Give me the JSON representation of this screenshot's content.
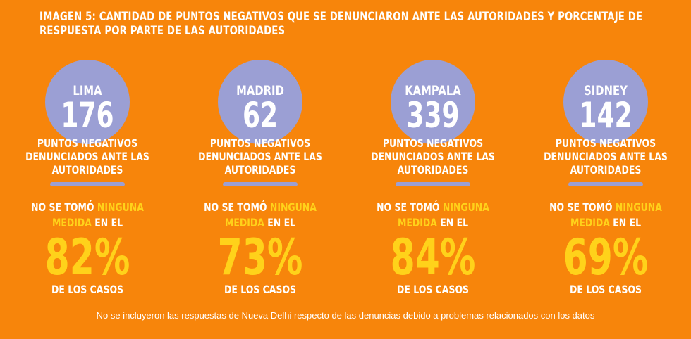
{
  "title": "IMAGEN 5: CANTIDAD DE PUNTOS NEGATIVOS QUE SE DENUNCIARON ANTE LAS AUTORIDADES Y PORCENTAJE DE RESPUESTA POR PARTE DE LAS AUTORIDADES",
  "colors": {
    "background": "#f7850b",
    "circle": "#9b9fd4",
    "highlight": "#ffd21a",
    "text": "#ffffff"
  },
  "cities": [
    {
      "name": "LIMA",
      "count": "176",
      "desc_lines": [
        "PUNTOS NEGATIVOS",
        "DENUNCIADOS ANTE LAS",
        "AUTORIDADES"
      ],
      "measure_pre": "NO SE TOMÓ ",
      "measure_hl1": "NINGUNA",
      "measure_hl2": "MEDIDA",
      "measure_post": " EN EL",
      "percent": "82%",
      "cases": "DE LOS CASOS"
    },
    {
      "name": "MADRID",
      "count": "62",
      "desc_lines": [
        "PUNTOS NEGATIVOS",
        "DENUNCIADOS ANTE LAS",
        "AUTORIDADES"
      ],
      "measure_pre": "NO SE TOMÓ ",
      "measure_hl1": "NINGUNA",
      "measure_hl2": "MEDIDA",
      "measure_post": " EN EL",
      "percent": "73%",
      "cases": "DE LOS CASOS"
    },
    {
      "name": "KAMPALA",
      "count": "339",
      "desc_lines": [
        "PUNTOS NEGATIVOS",
        "DENUNCIADOS ANTE LAS",
        "AUTORIDADES"
      ],
      "measure_pre": "NO SE TOMÓ ",
      "measure_hl1": "NINGUNA",
      "measure_hl2": "MEDIDA",
      "measure_post": " EN EL",
      "percent": "84%",
      "cases": "DE LOS CASOS"
    },
    {
      "name": "SIDNEY",
      "count": "142",
      "desc_lines": [
        "PUNTOS NEGATIVOS",
        "DENUNCIADOS ANTE LAS",
        "AUTORIDADES"
      ],
      "measure_pre": "NO SE TOMÓ ",
      "measure_hl1": "NINGUNA",
      "measure_hl2": "MEDIDA",
      "measure_post": " EN EL",
      "percent": "69%",
      "cases": "DE LOS CASOS"
    }
  ],
  "footnote": "No se incluyeron las respuestas de Nueva Delhi respecto de las denuncias debido a problemas relacionados con los datos"
}
